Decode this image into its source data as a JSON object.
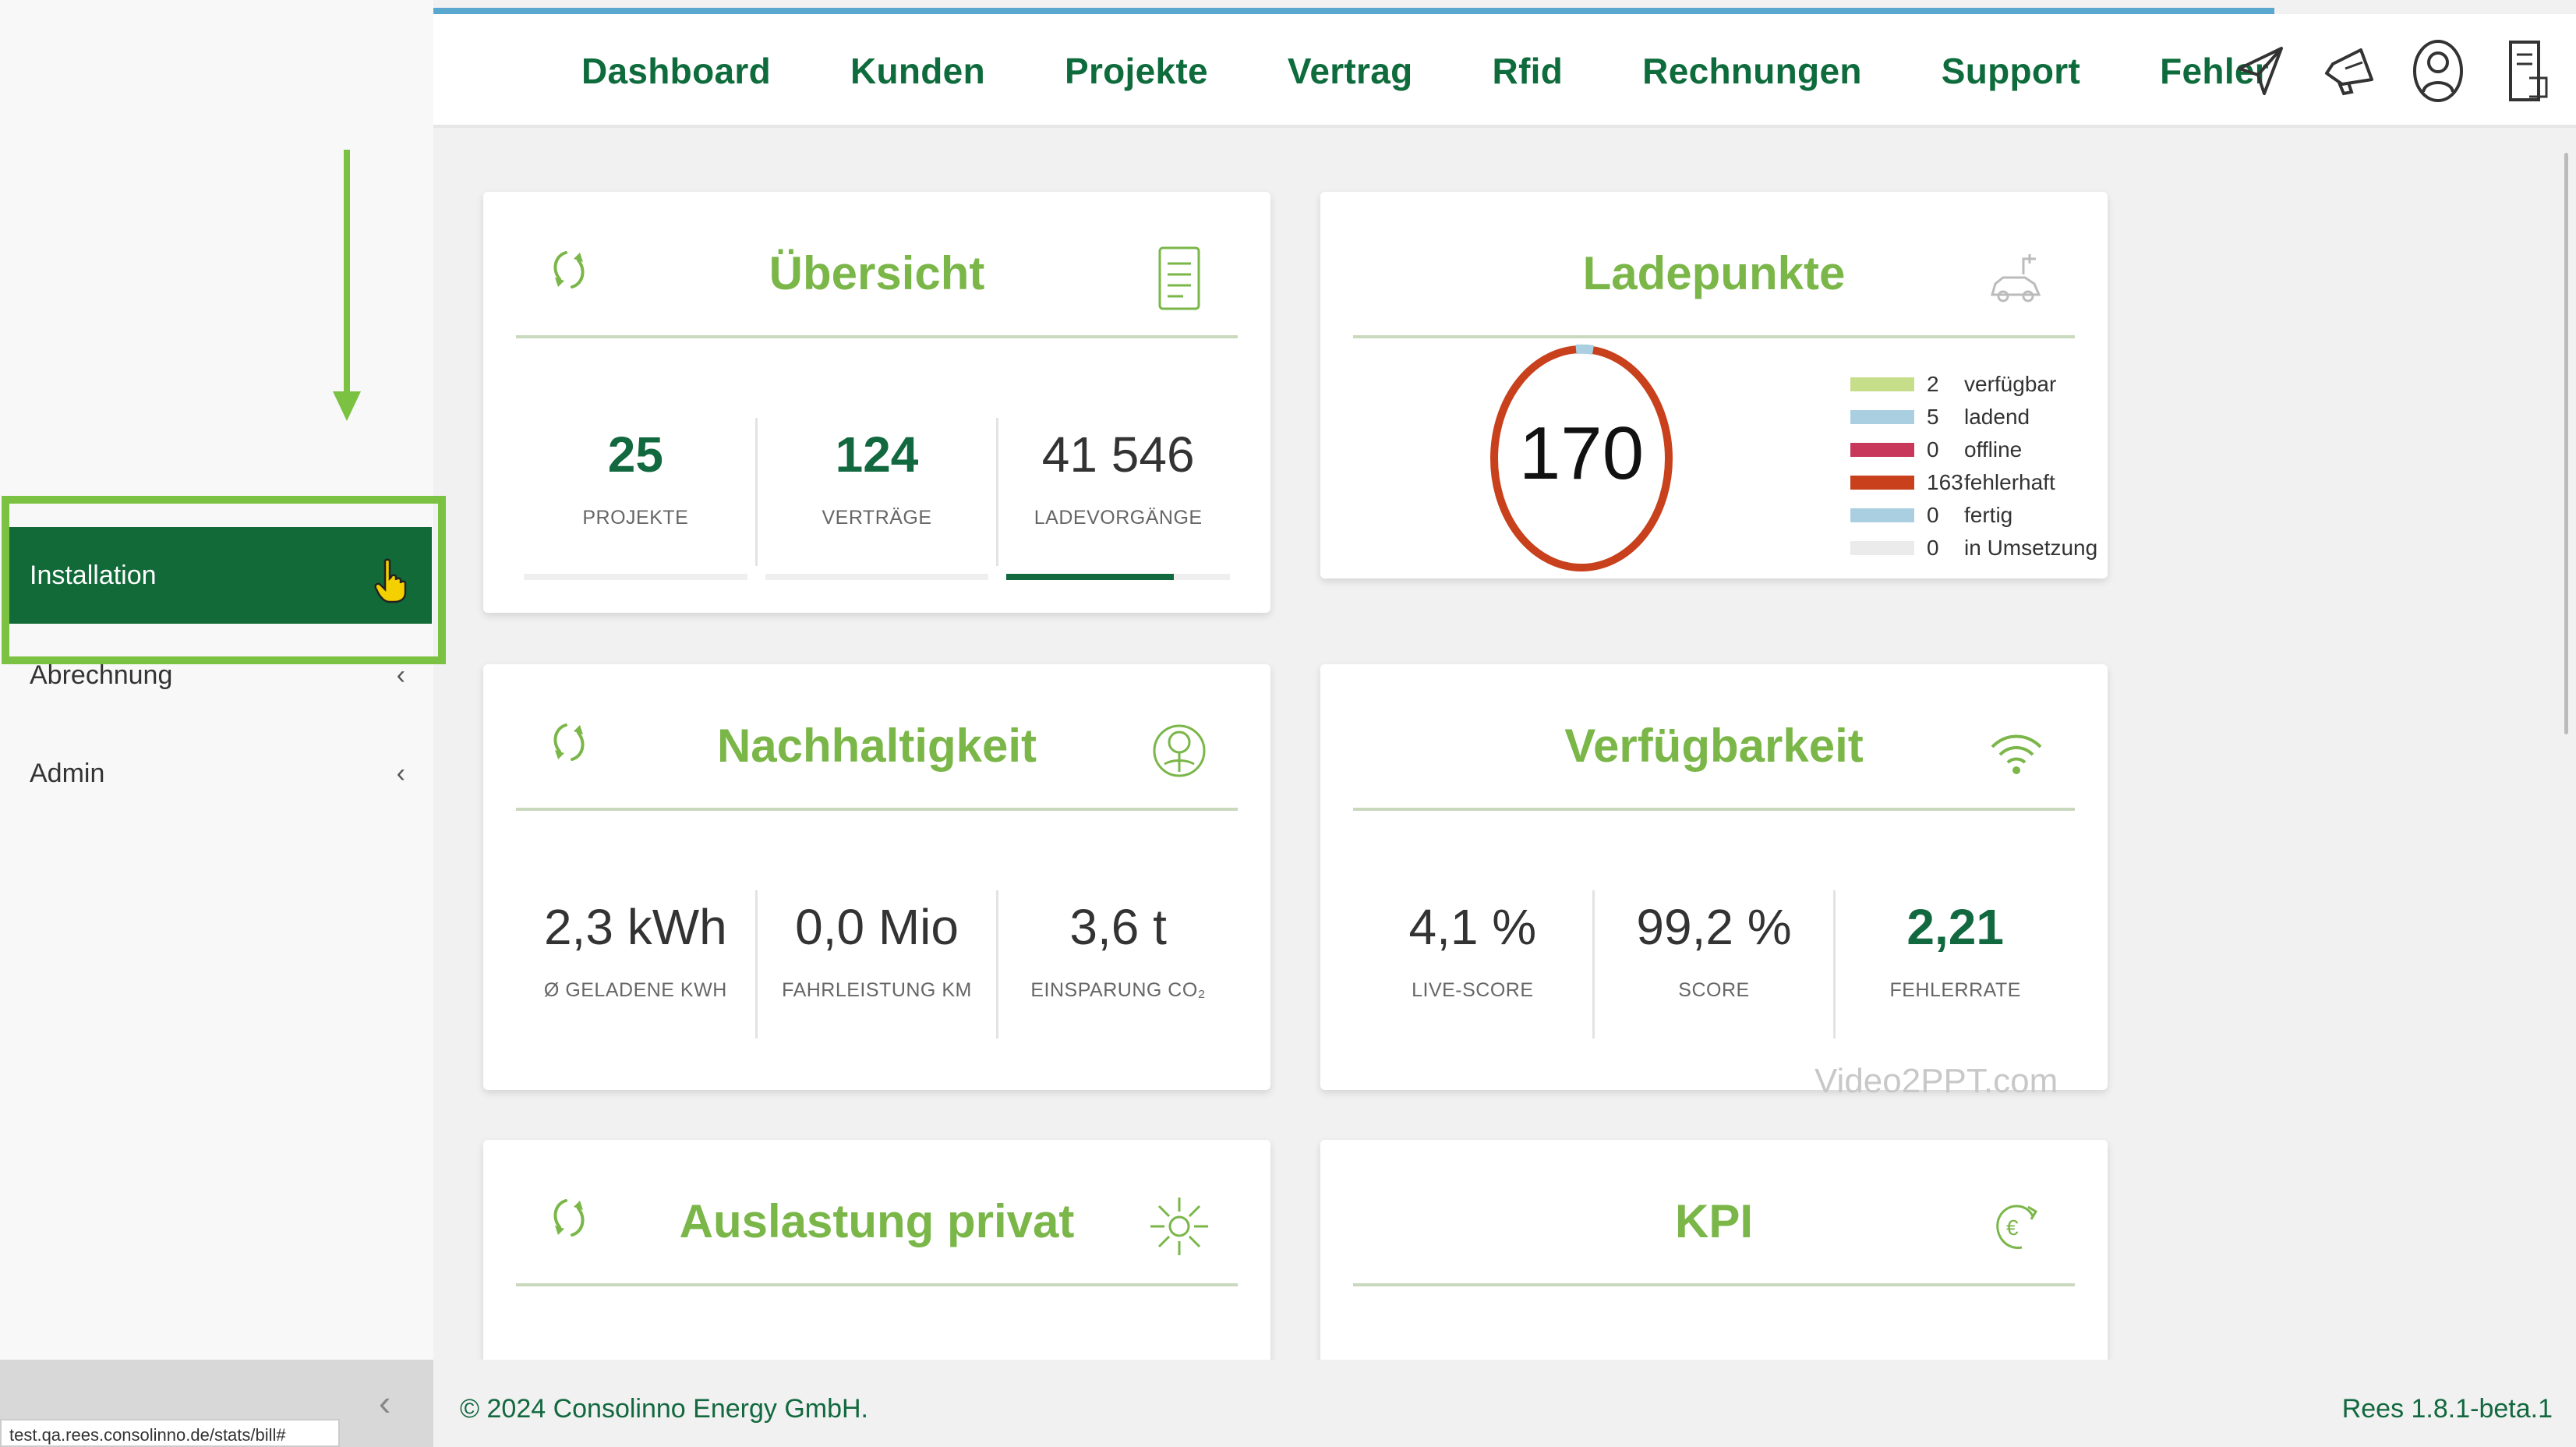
{
  "nav": {
    "items": [
      "Dashboard",
      "Kunden",
      "Projekte",
      "Vertrag",
      "Rfid",
      "Rechnungen",
      "Support",
      "Fehler"
    ],
    "icons": [
      "send-icon",
      "megaphone-icon",
      "user-icon",
      "document-icon"
    ]
  },
  "sidebar": {
    "items": [
      {
        "label": "Installation",
        "active": true
      },
      {
        "label": "Abrechnung",
        "chevron": "‹"
      },
      {
        "label": "Admin",
        "chevron": "‹"
      }
    ]
  },
  "cards": {
    "uebersicht": {
      "title": "Übersicht",
      "stats": [
        {
          "value": "25",
          "label": "PROJEKTE",
          "bar_fill": 0
        },
        {
          "value": "124",
          "label": "VERTRÄGE",
          "bar_fill": 0
        },
        {
          "value": "41 546",
          "label": "LADEVORGÄNGE",
          "bar_fill": 0.75
        }
      ]
    },
    "ladepunkte": {
      "title": "Ladepunkte",
      "total": "170",
      "legend": [
        {
          "count": "2",
          "label": "verfügbar",
          "color": "#c6dd8a"
        },
        {
          "count": "5",
          "label": "ladend",
          "color": "#a9cfe0"
        },
        {
          "count": "0",
          "label": "offline",
          "color": "#c8385a"
        },
        {
          "count": "163",
          "label": "fehlerhaft",
          "color": "#c8401c"
        },
        {
          "count": "0",
          "label": "fertig",
          "color": "#a9cfe0"
        },
        {
          "count": "0",
          "label": "in Umsetzung",
          "color": "#ebebeb"
        }
      ]
    },
    "nachhaltigkeit": {
      "title": "Nachhaltigkeit",
      "stats": [
        {
          "value": "2,3 kWh",
          "label": "Ø GELADENE KWH"
        },
        {
          "value": "0,0 Mio",
          "label": "FAHRLEISTUNG KM"
        },
        {
          "value": "3,6 t",
          "label": "EINSPARUNG CO₂"
        }
      ]
    },
    "verfuegbarkeit": {
      "title": "Verfügbarkeit",
      "stats": [
        {
          "value": "4,1 %",
          "label": "LIVE-SCORE"
        },
        {
          "value": "99,2 %",
          "label": "SCORE"
        },
        {
          "value": "2,21",
          "label": "FEHLERRATE"
        }
      ]
    },
    "auslastung": {
      "title": "Auslastung privat"
    },
    "kpi": {
      "title": "KPI"
    }
  },
  "watermark": "Video2PPT.com",
  "footer": {
    "copyright": "© 2024 Consolinno Energy GmbH.",
    "version": "Rees 1.8.1-beta.1",
    "status_url": "test.qa.rees.consolinno.de/stats/bill#"
  }
}
